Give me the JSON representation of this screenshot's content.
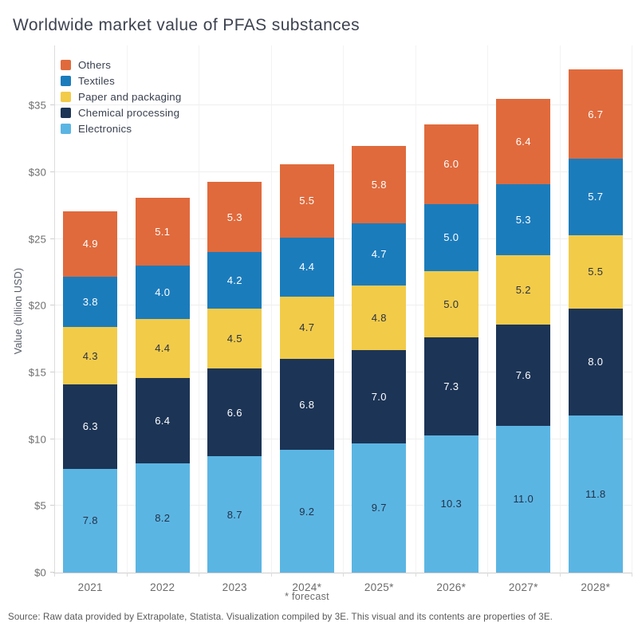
{
  "title": "Worldwide market value of PFAS substances",
  "source_note": "Source: Raw data provided by Extrapolate, Statista. Visualization compiled by 3E. This visual and its contents are properties of 3E.",
  "forecast_note": "* forecast",
  "colors": {
    "others": "#E06A3C",
    "textiles": "#1B7CBC",
    "paper_and_packaging": "#F2CB49",
    "chemical_processing": "#1C3456",
    "electronics": "#5BB5E3",
    "title_text": "#3D4350",
    "axis_text": "#6B6B6B",
    "gridline": "#EFEFEF",
    "background": "#FFFFFF"
  },
  "chart_data": {
    "type": "bar",
    "stacked": true,
    "title": "Worldwide market value of PFAS substances",
    "ylabel": "Value (billion USD)",
    "xlabel": "",
    "categories": [
      "2021",
      "2022",
      "2023",
      "2024*",
      "2025*",
      "2026*",
      "2027*",
      "2028*"
    ],
    "series": [
      {
        "name": "Electronics",
        "color": "#5BB5E3",
        "label_color": "#233349",
        "values": [
          7.8,
          8.2,
          8.7,
          9.2,
          9.7,
          10.3,
          11.0,
          11.8
        ]
      },
      {
        "name": "Chemical processing",
        "color": "#1C3456",
        "label_color": "#FFFFFF",
        "values": [
          6.3,
          6.4,
          6.6,
          6.8,
          7.0,
          7.3,
          7.6,
          8.0
        ]
      },
      {
        "name": "Paper and packaging",
        "color": "#F2CB49",
        "label_color": "#2B3240",
        "values": [
          4.3,
          4.4,
          4.5,
          4.7,
          4.8,
          5.0,
          5.2,
          5.5
        ]
      },
      {
        "name": "Textiles",
        "color": "#1B7CBC",
        "label_color": "#FFFFFF",
        "values": [
          3.8,
          4.0,
          4.2,
          4.4,
          4.7,
          5.0,
          5.3,
          5.7
        ]
      },
      {
        "name": "Others",
        "color": "#E06A3C",
        "label_color": "#FFFFFF",
        "values": [
          4.9,
          5.1,
          5.3,
          5.5,
          5.8,
          6.0,
          6.4,
          6.7
        ]
      }
    ],
    "totals": [
      27.1,
      28.1,
      29.3,
      30.6,
      32.0,
      33.6,
      35.5,
      37.7
    ],
    "legend_order": [
      "Others",
      "Textiles",
      "Paper and packaging",
      "Chemical processing",
      "Electronics"
    ],
    "legend_position": "top-left-inside",
    "yticks": {
      "values": [
        0,
        5,
        10,
        15,
        20,
        25,
        30,
        35
      ],
      "labels": [
        "$0",
        "$5",
        "$10",
        "$15",
        "$20",
        "$25",
        "$30",
        "$35"
      ]
    },
    "ylim": [
      0,
      39.5
    ],
    "grid": true,
    "value_label_format": "one-decimal"
  }
}
